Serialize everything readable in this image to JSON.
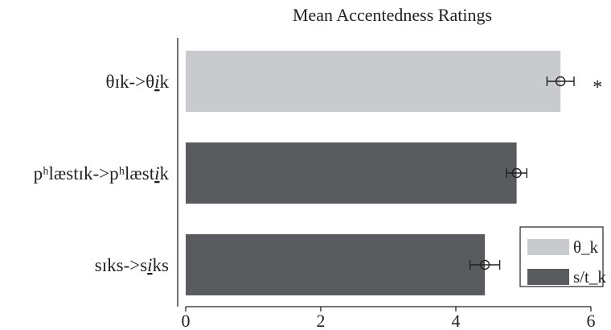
{
  "chart_data": {
    "type": "bar",
    "orientation": "horizontal",
    "title": "Mean Accentedness Ratings",
    "xlabel": "",
    "ylabel": "",
    "xlim": [
      0,
      6
    ],
    "x_ticks": [
      "0",
      "2",
      "4",
      "6"
    ],
    "grid": false,
    "legend_position": "bottom-right",
    "categories": [
      {
        "base": "θɪk->θ",
        "emph": "i",
        "tail": "k"
      },
      {
        "base": "pʰlæstɪk->pʰlæst",
        "emph": "i",
        "tail": "k"
      },
      {
        "base": "sɪks->s",
        "emph": "i",
        "tail": "ks"
      }
    ],
    "values": [
      5.55,
      4.9,
      4.43
    ],
    "errors": [
      0.2,
      0.15,
      0.22
    ],
    "bar_series": [
      "θ_k",
      "s/t_k",
      "s/t_k"
    ],
    "significance": [
      "*",
      "",
      ""
    ],
    "series": [
      {
        "name": "θ_k",
        "color": "#c8cacd"
      },
      {
        "name": "s/t_k",
        "color": "#595b5e"
      }
    ]
  }
}
